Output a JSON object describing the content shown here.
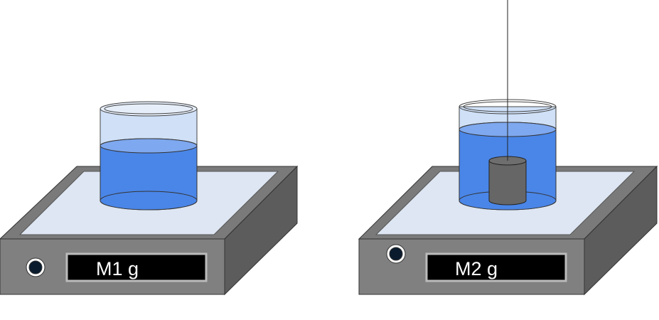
{
  "scales": [
    {
      "display_text": "M1 g",
      "beaker": {
        "has_cylinder": false,
        "has_string": false
      }
    },
    {
      "display_text": "M2 g",
      "beaker": {
        "has_cylinder": true,
        "has_string": true
      }
    }
  ],
  "colors": {
    "scale_front": "#808080",
    "scale_top": "#7a7a7a",
    "scale_side": "#5c5c5c",
    "platform": "#dde6f2",
    "display_bg": "#000000",
    "display_text": "#ffffff",
    "water": "#4a86e8",
    "water_surface": "#7ea8ef",
    "glass": "#cfe0f7",
    "cylinder": "#666666",
    "cylinder_top": "#6e6e6e"
  }
}
